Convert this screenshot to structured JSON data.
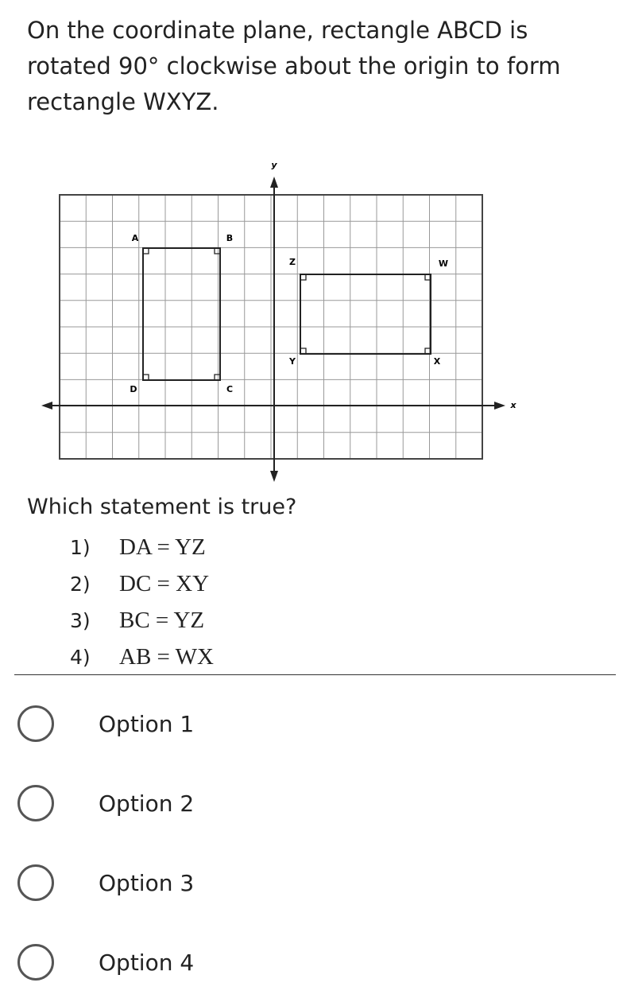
{
  "question": "On the coordinate plane, rectangle ABCD is rotated 90° clockwise about the origin to form rectangle WXYZ.",
  "graph": {
    "y_label": "y",
    "x_label": "x",
    "labels": [
      "A",
      "B",
      "C",
      "D",
      "W",
      "X",
      "Y",
      "Z"
    ]
  },
  "prompt": "Which statement is true?",
  "statements": [
    {
      "number": "1)",
      "text": "DA = YZ"
    },
    {
      "number": "2)",
      "text": "DC = XY"
    },
    {
      "number": "3)",
      "text": "BC = YZ"
    },
    {
      "number": "4)",
      "text": "AB = WX"
    }
  ],
  "options": [
    "Option 1",
    "Option 2",
    "Option 3",
    "Option 4"
  ]
}
